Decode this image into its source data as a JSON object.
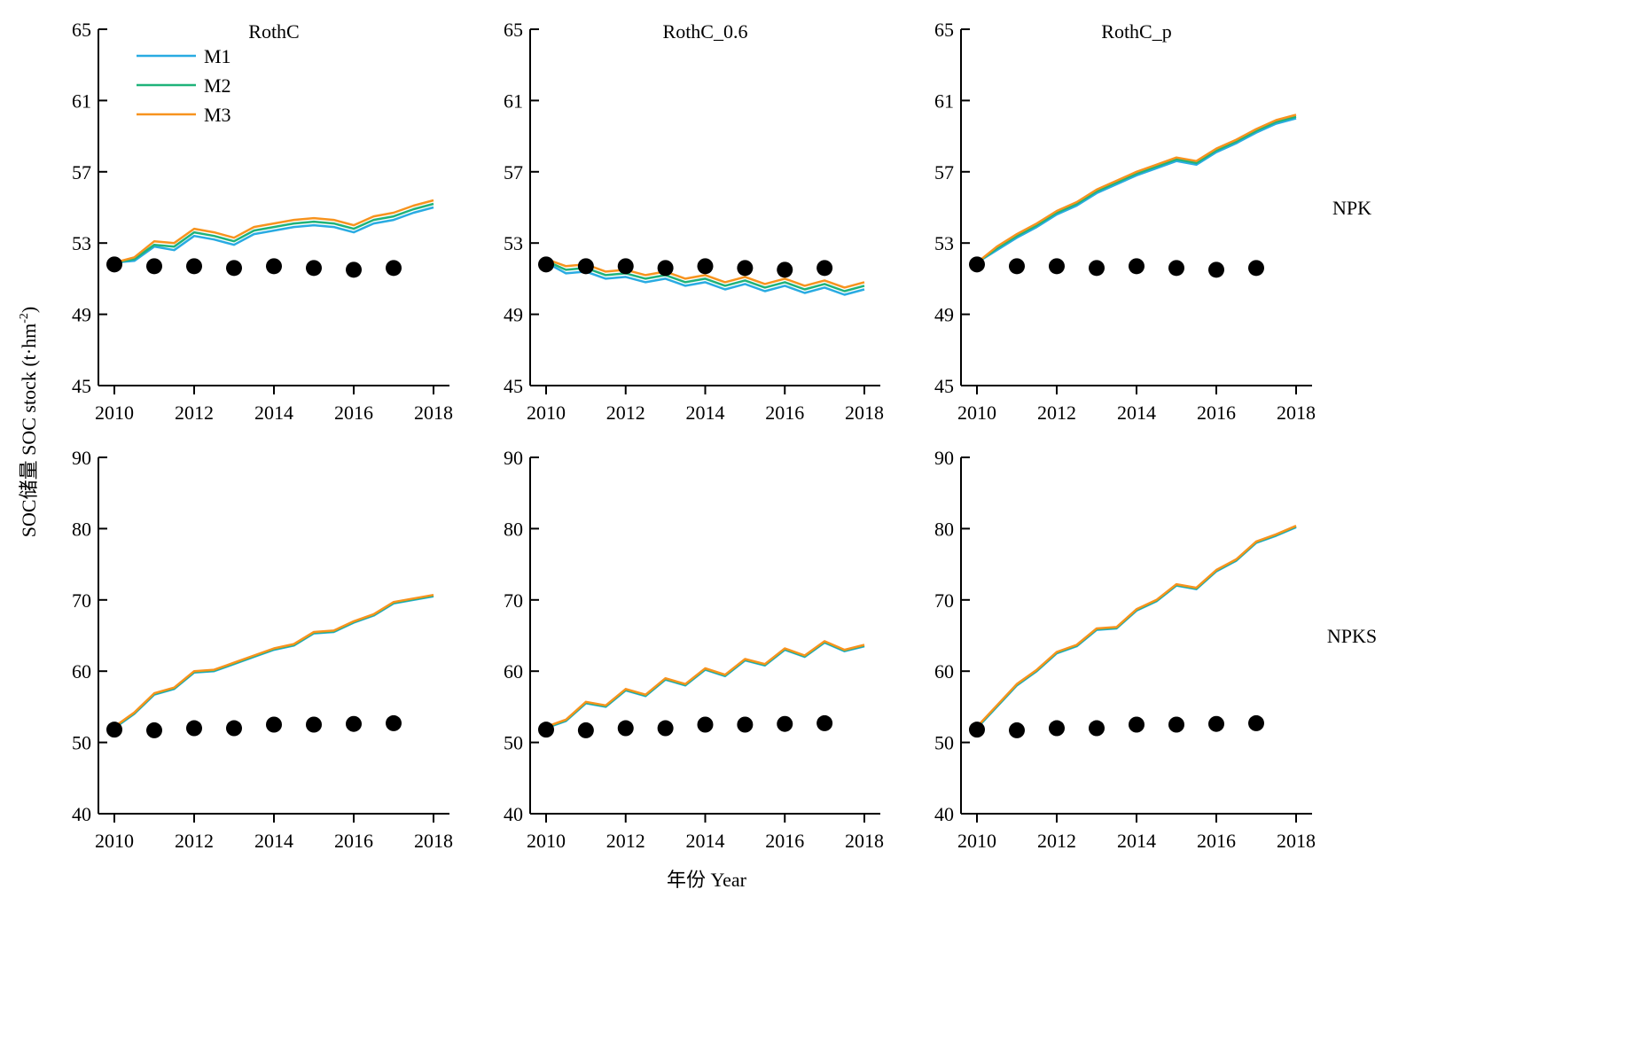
{
  "figure": {
    "xlabel": "年份 Year",
    "ylabel": "SOC储量 SOC stock (t·hm",
    "ylabel_sup": "-2",
    "ylabel_tail": ")",
    "colors": {
      "M1": "#29abe2",
      "M2": "#1fb37a",
      "M3": "#f7931e",
      "observed": "#000000"
    }
  },
  "chart_data": [
    {
      "type": "line",
      "title": "RothC",
      "row_label": "",
      "xlim": [
        2010,
        2018
      ],
      "ylim": [
        45,
        65
      ],
      "xticks": [
        2010,
        2012,
        2014,
        2016,
        2018
      ],
      "yticks": [
        45,
        49,
        53,
        57,
        61,
        65
      ],
      "legend": {
        "placement": "top-left",
        "entries": [
          "M1",
          "M2",
          "M3"
        ]
      },
      "series": [
        {
          "name": "M1",
          "x": [
            2010.0,
            2010.5,
            2011.0,
            2011.5,
            2012.0,
            2012.5,
            2013.0,
            2013.5,
            2014.0,
            2014.5,
            2015.0,
            2015.5,
            2016.0,
            2016.5,
            2017.0,
            2017.5,
            2018.0
          ],
          "y": [
            51.9,
            52.0,
            52.8,
            52.6,
            53.4,
            53.2,
            52.9,
            53.5,
            53.7,
            53.9,
            54.0,
            53.9,
            53.6,
            54.1,
            54.3,
            54.7,
            55.0
          ]
        },
        {
          "name": "M2",
          "x": [
            2010.0,
            2010.5,
            2011.0,
            2011.5,
            2012.0,
            2012.5,
            2013.0,
            2013.5,
            2014.0,
            2014.5,
            2015.0,
            2015.5,
            2016.0,
            2016.5,
            2017.0,
            2017.5,
            2018.0
          ],
          "y": [
            51.9,
            52.1,
            52.9,
            52.8,
            53.6,
            53.4,
            53.1,
            53.7,
            53.9,
            54.1,
            54.2,
            54.1,
            53.8,
            54.3,
            54.5,
            54.9,
            55.2
          ]
        },
        {
          "name": "M3",
          "x": [
            2010.0,
            2010.5,
            2011.0,
            2011.5,
            2012.0,
            2012.5,
            2013.0,
            2013.5,
            2014.0,
            2014.5,
            2015.0,
            2015.5,
            2016.0,
            2016.5,
            2017.0,
            2017.5,
            2018.0
          ],
          "y": [
            51.9,
            52.2,
            53.1,
            53.0,
            53.8,
            53.6,
            53.3,
            53.9,
            54.1,
            54.3,
            54.4,
            54.3,
            54.0,
            54.5,
            54.7,
            55.1,
            55.4
          ]
        }
      ],
      "observed": {
        "x": [
          2010,
          2011,
          2012,
          2013,
          2014,
          2015,
          2016,
          2017
        ],
        "y": [
          51.8,
          51.7,
          51.7,
          51.6,
          51.7,
          51.6,
          51.5,
          51.6
        ]
      }
    },
    {
      "type": "line",
      "title": "RothC_0.6",
      "row_label": "",
      "xlim": [
        2010,
        2018
      ],
      "ylim": [
        45,
        65
      ],
      "xticks": [
        2010,
        2012,
        2014,
        2016,
        2018
      ],
      "yticks": [
        45,
        49,
        53,
        57,
        61,
        65
      ],
      "series": [
        {
          "name": "M1",
          "x": [
            2010.0,
            2010.5,
            2011.0,
            2011.5,
            2012.0,
            2012.5,
            2013.0,
            2013.5,
            2014.0,
            2014.5,
            2015.0,
            2015.5,
            2016.0,
            2016.5,
            2017.0,
            2017.5,
            2018.0
          ],
          "y": [
            51.9,
            51.3,
            51.4,
            51.0,
            51.1,
            50.8,
            51.0,
            50.6,
            50.8,
            50.4,
            50.7,
            50.3,
            50.6,
            50.2,
            50.5,
            50.1,
            50.4
          ]
        },
        {
          "name": "M2",
          "x": [
            2010.0,
            2010.5,
            2011.0,
            2011.5,
            2012.0,
            2012.5,
            2013.0,
            2013.5,
            2014.0,
            2014.5,
            2015.0,
            2015.5,
            2016.0,
            2016.5,
            2017.0,
            2017.5,
            2018.0
          ],
          "y": [
            52.0,
            51.5,
            51.6,
            51.2,
            51.3,
            51.0,
            51.2,
            50.8,
            51.0,
            50.6,
            50.9,
            50.5,
            50.8,
            50.4,
            50.7,
            50.3,
            50.6
          ]
        },
        {
          "name": "M3",
          "x": [
            2010.0,
            2010.5,
            2011.0,
            2011.5,
            2012.0,
            2012.5,
            2013.0,
            2013.5,
            2014.0,
            2014.5,
            2015.0,
            2015.5,
            2016.0,
            2016.5,
            2017.0,
            2017.5,
            2018.0
          ],
          "y": [
            52.1,
            51.7,
            51.8,
            51.4,
            51.5,
            51.2,
            51.4,
            51.0,
            51.2,
            50.8,
            51.1,
            50.7,
            51.0,
            50.6,
            50.9,
            50.5,
            50.8
          ]
        }
      ],
      "observed": {
        "x": [
          2010,
          2011,
          2012,
          2013,
          2014,
          2015,
          2016,
          2017
        ],
        "y": [
          51.8,
          51.7,
          51.7,
          51.6,
          51.7,
          51.6,
          51.5,
          51.6
        ]
      }
    },
    {
      "type": "line",
      "title": "RothC_p",
      "row_label": "NPK",
      "xlim": [
        2010,
        2018
      ],
      "ylim": [
        45,
        65
      ],
      "xticks": [
        2010,
        2012,
        2014,
        2016,
        2018
      ],
      "yticks": [
        45,
        49,
        53,
        57,
        61,
        65
      ],
      "series": [
        {
          "name": "M1",
          "x": [
            2010.0,
            2010.5,
            2011.0,
            2011.5,
            2012.0,
            2012.5,
            2013.0,
            2013.5,
            2014.0,
            2014.5,
            2015.0,
            2015.5,
            2016.0,
            2016.5,
            2017.0,
            2017.5,
            2018.0
          ],
          "y": [
            51.9,
            52.6,
            53.3,
            53.9,
            54.6,
            55.1,
            55.8,
            56.3,
            56.8,
            57.2,
            57.6,
            57.4,
            58.1,
            58.6,
            59.2,
            59.7,
            60.0
          ]
        },
        {
          "name": "M2",
          "x": [
            2010.0,
            2010.5,
            2011.0,
            2011.5,
            2012.0,
            2012.5,
            2013.0,
            2013.5,
            2014.0,
            2014.5,
            2015.0,
            2015.5,
            2016.0,
            2016.5,
            2017.0,
            2017.5,
            2018.0
          ],
          "y": [
            51.9,
            52.7,
            53.4,
            54.0,
            54.7,
            55.2,
            55.9,
            56.4,
            56.9,
            57.3,
            57.7,
            57.5,
            58.2,
            58.7,
            59.3,
            59.8,
            60.1
          ]
        },
        {
          "name": "M3",
          "x": [
            2010.0,
            2010.5,
            2011.0,
            2011.5,
            2012.0,
            2012.5,
            2013.0,
            2013.5,
            2014.0,
            2014.5,
            2015.0,
            2015.5,
            2016.0,
            2016.5,
            2017.0,
            2017.5,
            2018.0
          ],
          "y": [
            51.9,
            52.8,
            53.5,
            54.1,
            54.8,
            55.3,
            56.0,
            56.5,
            57.0,
            57.4,
            57.8,
            57.6,
            58.3,
            58.8,
            59.4,
            59.9,
            60.2
          ]
        }
      ],
      "observed": {
        "x": [
          2010,
          2011,
          2012,
          2013,
          2014,
          2015,
          2016,
          2017
        ],
        "y": [
          51.8,
          51.7,
          51.7,
          51.6,
          51.7,
          51.6,
          51.5,
          51.6
        ]
      }
    },
    {
      "type": "line",
      "title": "",
      "row_label": "",
      "xlim": [
        2010,
        2018
      ],
      "ylim": [
        40,
        90
      ],
      "xticks": [
        2010,
        2012,
        2014,
        2016,
        2018
      ],
      "yticks": [
        40,
        50,
        60,
        70,
        80,
        90
      ],
      "series": [
        {
          "name": "M1",
          "x": [
            2010.0,
            2010.5,
            2011.0,
            2011.5,
            2012.0,
            2012.5,
            2013.0,
            2013.5,
            2014.0,
            2014.5,
            2015.0,
            2015.5,
            2016.0,
            2016.5,
            2017.0,
            2017.5,
            2018.0
          ],
          "y": [
            52.0,
            54.0,
            56.7,
            57.5,
            59.8,
            60.0,
            61.0,
            62.0,
            63.0,
            63.6,
            65.3,
            65.5,
            66.8,
            67.8,
            69.5,
            70.0,
            70.5
          ]
        },
        {
          "name": "M2",
          "x": [
            2010.0,
            2010.5,
            2011.0,
            2011.5,
            2012.0,
            2012.5,
            2013.0,
            2013.5,
            2014.0,
            2014.5,
            2015.0,
            2015.5,
            2016.0,
            2016.5,
            2017.0,
            2017.5,
            2018.0
          ],
          "y": [
            52.1,
            54.1,
            56.8,
            57.6,
            59.9,
            60.1,
            61.1,
            62.1,
            63.1,
            63.7,
            65.4,
            65.6,
            66.9,
            67.9,
            69.6,
            70.1,
            70.6
          ]
        },
        {
          "name": "M3",
          "x": [
            2010.0,
            2010.5,
            2011.0,
            2011.5,
            2012.0,
            2012.5,
            2013.0,
            2013.5,
            2014.0,
            2014.5,
            2015.0,
            2015.5,
            2016.0,
            2016.5,
            2017.0,
            2017.5,
            2018.0
          ],
          "y": [
            52.2,
            54.2,
            56.9,
            57.7,
            60.0,
            60.2,
            61.2,
            62.2,
            63.2,
            63.8,
            65.5,
            65.7,
            67.0,
            68.0,
            69.7,
            70.2,
            70.7
          ]
        }
      ],
      "observed": {
        "x": [
          2010,
          2011,
          2012,
          2013,
          2014,
          2015,
          2016,
          2017
        ],
        "y": [
          51.8,
          51.7,
          52.0,
          52.0,
          52.5,
          52.5,
          52.6,
          52.7
        ]
      }
    },
    {
      "type": "line",
      "title": "",
      "row_label": "",
      "xlim": [
        2010,
        2018
      ],
      "ylim": [
        40,
        90
      ],
      "xticks": [
        2010,
        2012,
        2014,
        2016,
        2018
      ],
      "yticks": [
        40,
        50,
        60,
        70,
        80,
        90
      ],
      "series": [
        {
          "name": "M1",
          "x": [
            2010.0,
            2010.5,
            2011.0,
            2011.5,
            2012.0,
            2012.5,
            2013.0,
            2013.5,
            2014.0,
            2014.5,
            2015.0,
            2015.5,
            2016.0,
            2016.5,
            2017.0,
            2017.5,
            2018.0
          ],
          "y": [
            52.0,
            53.0,
            55.5,
            55.0,
            57.3,
            56.5,
            58.8,
            58.0,
            60.2,
            59.3,
            61.5,
            60.8,
            63.0,
            62.0,
            64.0,
            62.8,
            63.5
          ]
        },
        {
          "name": "M2",
          "x": [
            2010.0,
            2010.5,
            2011.0,
            2011.5,
            2012.0,
            2012.5,
            2013.0,
            2013.5,
            2014.0,
            2014.5,
            2015.0,
            2015.5,
            2016.0,
            2016.5,
            2017.0,
            2017.5,
            2018.0
          ],
          "y": [
            52.1,
            53.1,
            55.6,
            55.1,
            57.4,
            56.6,
            58.9,
            58.1,
            60.3,
            59.4,
            61.6,
            60.9,
            63.1,
            62.1,
            64.1,
            62.9,
            63.6
          ]
        },
        {
          "name": "M3",
          "x": [
            2010.0,
            2010.5,
            2011.0,
            2011.5,
            2012.0,
            2012.5,
            2013.0,
            2013.5,
            2014.0,
            2014.5,
            2015.0,
            2015.5,
            2016.0,
            2016.5,
            2017.0,
            2017.5,
            2018.0
          ],
          "y": [
            52.2,
            53.2,
            55.7,
            55.2,
            57.5,
            56.7,
            59.0,
            58.2,
            60.4,
            59.5,
            61.7,
            61.0,
            63.2,
            62.2,
            64.2,
            63.0,
            63.7
          ]
        }
      ],
      "observed": {
        "x": [
          2010,
          2011,
          2012,
          2013,
          2014,
          2015,
          2016,
          2017
        ],
        "y": [
          51.8,
          51.7,
          52.0,
          52.0,
          52.5,
          52.5,
          52.6,
          52.7
        ]
      }
    },
    {
      "type": "line",
      "title": "",
      "row_label": "NPKS",
      "xlim": [
        2010,
        2018
      ],
      "ylim": [
        40,
        90
      ],
      "xticks": [
        2010,
        2012,
        2014,
        2016,
        2018
      ],
      "yticks": [
        40,
        50,
        60,
        70,
        80,
        90
      ],
      "series": [
        {
          "name": "M1",
          "x": [
            2010.0,
            2010.5,
            2011.0,
            2011.5,
            2012.0,
            2012.5,
            2013.0,
            2013.5,
            2014.0,
            2014.5,
            2015.0,
            2015.5,
            2016.0,
            2016.5,
            2017.0,
            2017.5,
            2018.0
          ],
          "y": [
            52.0,
            55.0,
            58.0,
            60.0,
            62.5,
            63.5,
            65.8,
            66.0,
            68.5,
            69.8,
            72.0,
            71.5,
            74.0,
            75.5,
            78.0,
            79.0,
            80.2
          ]
        },
        {
          "name": "M2",
          "x": [
            2010.0,
            2010.5,
            2011.0,
            2011.5,
            2012.0,
            2012.5,
            2013.0,
            2013.5,
            2014.0,
            2014.5,
            2015.0,
            2015.5,
            2016.0,
            2016.5,
            2017.0,
            2017.5,
            2018.0
          ],
          "y": [
            52.1,
            55.1,
            58.1,
            60.1,
            62.6,
            63.6,
            65.9,
            66.1,
            68.6,
            69.9,
            72.1,
            71.6,
            74.1,
            75.6,
            78.1,
            79.1,
            80.3
          ]
        },
        {
          "name": "M3",
          "x": [
            2010.0,
            2010.5,
            2011.0,
            2011.5,
            2012.0,
            2012.5,
            2013.0,
            2013.5,
            2014.0,
            2014.5,
            2015.0,
            2015.5,
            2016.0,
            2016.5,
            2017.0,
            2017.5,
            2018.0
          ],
          "y": [
            52.2,
            55.2,
            58.2,
            60.2,
            62.7,
            63.7,
            66.0,
            66.2,
            68.7,
            70.0,
            72.2,
            71.7,
            74.2,
            75.7,
            78.2,
            79.2,
            80.4
          ]
        }
      ],
      "observed": {
        "x": [
          2010,
          2011,
          2012,
          2013,
          2014,
          2015,
          2016,
          2017
        ],
        "y": [
          51.8,
          51.7,
          52.0,
          52.0,
          52.5,
          52.5,
          52.6,
          52.7
        ]
      }
    }
  ]
}
